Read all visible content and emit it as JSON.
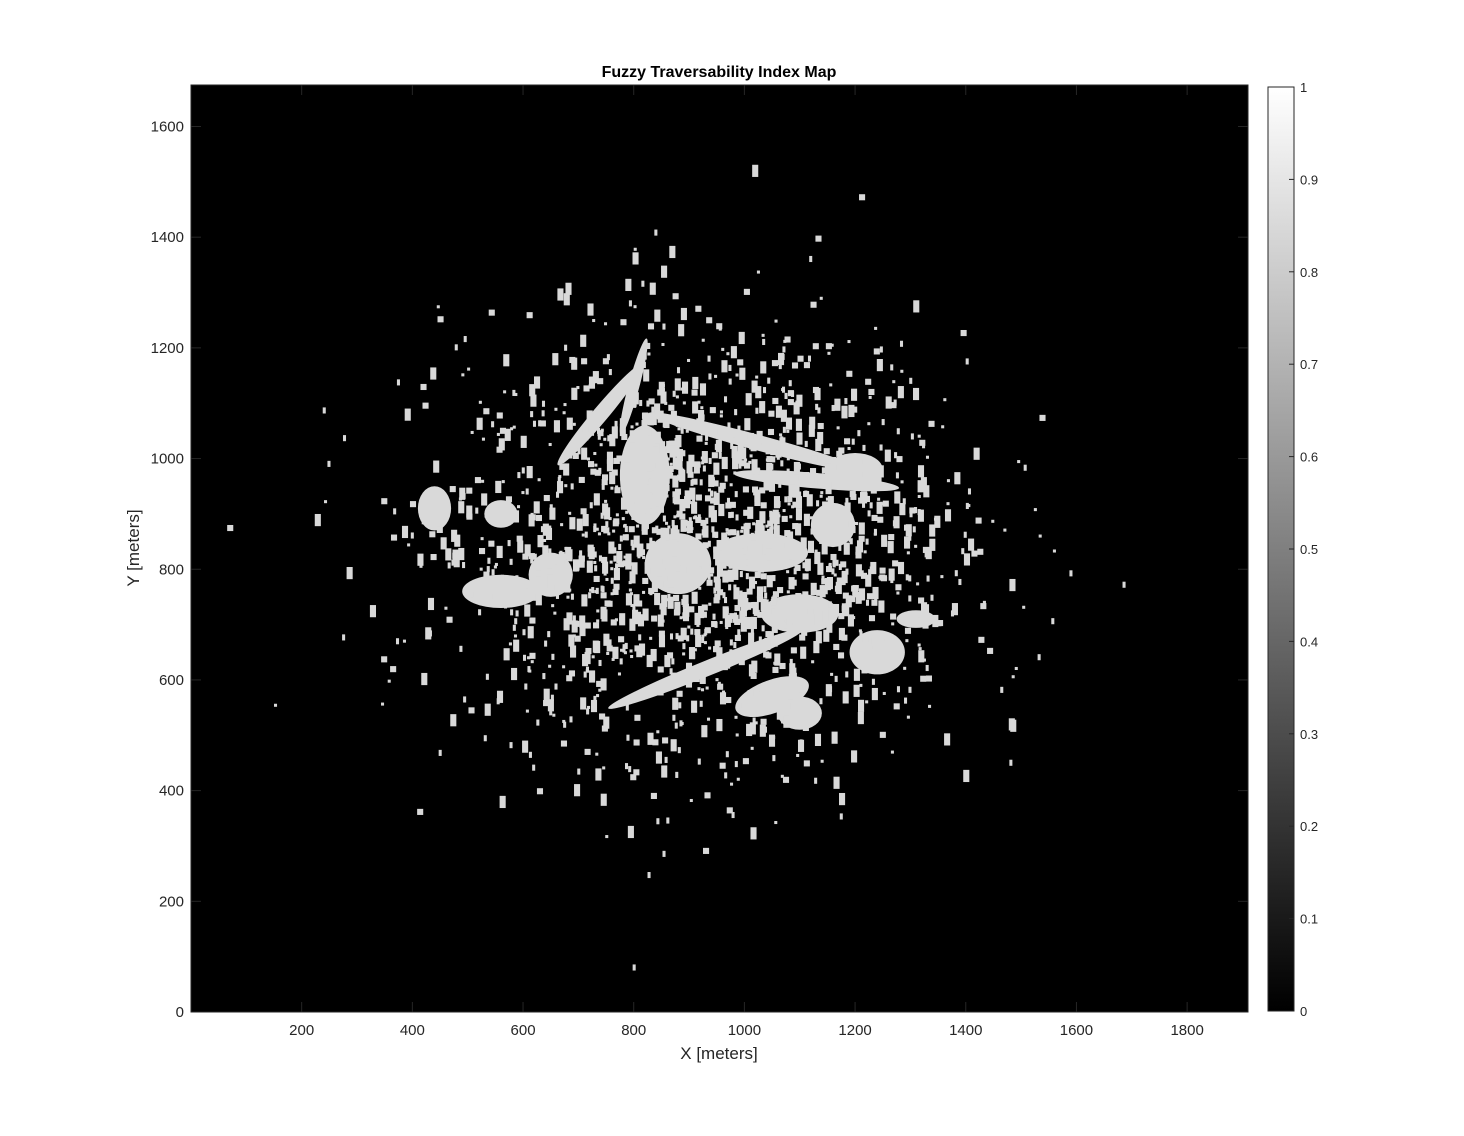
{
  "chart_data": {
    "type": "heatmap",
    "title": "Fuzzy Traversability Index Map",
    "xlabel": "X [meters]",
    "ylabel": "Y [meters]",
    "xlim": [
      0,
      1910
    ],
    "ylim": [
      0,
      1675
    ],
    "xticks": [
      200,
      400,
      600,
      800,
      1000,
      1200,
      1400,
      1600,
      1800
    ],
    "yticks": [
      0,
      200,
      400,
      600,
      800,
      1000,
      1200,
      1400,
      1600
    ],
    "colormap": "gray",
    "background_value": 0,
    "traversable_value": 0.85,
    "colorbar": {
      "range": [
        0,
        1
      ],
      "ticks": [
        0,
        0.1,
        0.2,
        0.3,
        0.4,
        0.5,
        0.6,
        0.7,
        0.8,
        0.9,
        1
      ]
    },
    "grid": false,
    "traversable_regions": [
      {
        "name": "central-hub",
        "cx": 820,
        "cy": 970,
        "rx": 45,
        "ry": 90,
        "rot": 0
      },
      {
        "name": "upper-left-arm",
        "cx": 740,
        "cy": 1080,
        "rx": 120,
        "ry": 14,
        "rot": -50
      },
      {
        "name": "upper-arm-2",
        "cx": 800,
        "cy": 1130,
        "rx": 90,
        "ry": 10,
        "rot": -75
      },
      {
        "name": "upper-right-streak",
        "cx": 1020,
        "cy": 1030,
        "rx": 200,
        "ry": 14,
        "rot": 15
      },
      {
        "name": "mid-right-streak",
        "cx": 1130,
        "cy": 960,
        "rx": 150,
        "ry": 14,
        "rot": 5
      },
      {
        "name": "center-blob",
        "cx": 880,
        "cy": 810,
        "rx": 60,
        "ry": 55,
        "rot": 0
      },
      {
        "name": "center-right-blob",
        "cx": 1030,
        "cy": 830,
        "rx": 85,
        "ry": 35,
        "rot": 0
      },
      {
        "name": "right-blob",
        "cx": 1160,
        "cy": 880,
        "rx": 40,
        "ry": 40,
        "rot": 0
      },
      {
        "name": "left-blob",
        "cx": 560,
        "cy": 760,
        "rx": 70,
        "ry": 30,
        "rot": 0
      },
      {
        "name": "left-blob-2",
        "cx": 650,
        "cy": 790,
        "rx": 40,
        "ry": 40,
        "rot": 0
      },
      {
        "name": "lower-streak",
        "cx": 930,
        "cy": 620,
        "rx": 190,
        "ry": 14,
        "rot": -22
      },
      {
        "name": "lower-blob",
        "cx": 1050,
        "cy": 570,
        "rx": 70,
        "ry": 30,
        "rot": -20
      },
      {
        "name": "right-edge-patch",
        "cx": 1310,
        "cy": 710,
        "rx": 35,
        "ry": 16,
        "rot": 0
      },
      {
        "name": "right-mid-blob",
        "cx": 1100,
        "cy": 720,
        "rx": 70,
        "ry": 35,
        "rot": 0
      },
      {
        "name": "far-left-patch",
        "cx": 440,
        "cy": 910,
        "rx": 30,
        "ry": 40,
        "rot": 0
      },
      {
        "name": "left-mid-patch",
        "cx": 560,
        "cy": 900,
        "rx": 30,
        "ry": 25,
        "rot": 0
      },
      {
        "name": "upper-right-blob",
        "cx": 1200,
        "cy": 980,
        "rx": 50,
        "ry": 30,
        "rot": 0
      },
      {
        "name": "lower-right-blob",
        "cx": 1240,
        "cy": 650,
        "rx": 50,
        "ry": 40,
        "rot": 0
      },
      {
        "name": "bottom-patch",
        "cx": 1100,
        "cy": 540,
        "rx": 40,
        "ry": 30,
        "rot": 0
      }
    ],
    "scatter_cloud": {
      "cx": 930,
      "cy": 850,
      "sx": 230,
      "sy": 190,
      "count": 1900
    }
  }
}
